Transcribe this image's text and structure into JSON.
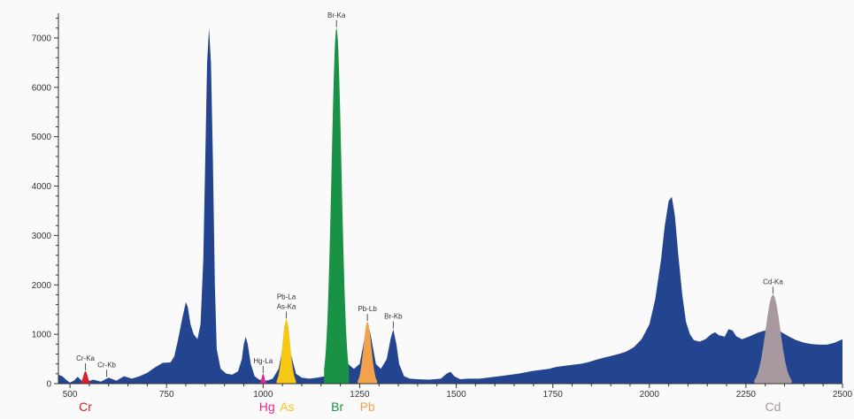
{
  "chart_data": {
    "type": "area",
    "title": "",
    "xlabel": "",
    "ylabel": "",
    "xlim": [
      470,
      2500
    ],
    "ylim": [
      0,
      7500
    ],
    "x_ticks": [
      500,
      750,
      1000,
      1250,
      1500,
      1750,
      2000,
      2250,
      2500
    ],
    "y_ticks": [
      0,
      1000,
      2000,
      3000,
      4000,
      5000,
      6000,
      7000
    ],
    "grid": false,
    "series": [
      {
        "color": "#23448f",
        "points": [
          [
            470,
            180
          ],
          [
            480,
            150
          ],
          [
            490,
            80
          ],
          [
            500,
            20
          ],
          [
            510,
            60
          ],
          [
            520,
            140
          ],
          [
            530,
            60
          ],
          [
            540,
            30
          ],
          [
            560,
            80
          ],
          [
            580,
            40
          ],
          [
            600,
            120
          ],
          [
            620,
            60
          ],
          [
            640,
            150
          ],
          [
            660,
            100
          ],
          [
            680,
            150
          ],
          [
            700,
            220
          ],
          [
            720,
            330
          ],
          [
            740,
            420
          ],
          [
            760,
            430
          ],
          [
            770,
            550
          ],
          [
            780,
            900
          ],
          [
            790,
            1300
          ],
          [
            800,
            1650
          ],
          [
            805,
            1550
          ],
          [
            812,
            1200
          ],
          [
            820,
            1000
          ],
          [
            830,
            900
          ],
          [
            838,
            1200
          ],
          [
            845,
            2500
          ],
          [
            850,
            4500
          ],
          [
            855,
            6500
          ],
          [
            860,
            7200
          ],
          [
            865,
            6500
          ],
          [
            870,
            4500
          ],
          [
            875,
            2000
          ],
          [
            880,
            700
          ],
          [
            890,
            300
          ],
          [
            905,
            200
          ],
          [
            920,
            180
          ],
          [
            935,
            250
          ],
          [
            945,
            500
          ],
          [
            950,
            800
          ],
          [
            955,
            950
          ],
          [
            960,
            800
          ],
          [
            968,
            400
          ],
          [
            978,
            150
          ],
          [
            990,
            80
          ],
          [
            1010,
            60
          ],
          [
            1025,
            100
          ],
          [
            1040,
            300
          ],
          [
            1050,
            700
          ],
          [
            1055,
            1150
          ],
          [
            1060,
            1300
          ],
          [
            1065,
            1150
          ],
          [
            1072,
            600
          ],
          [
            1085,
            200
          ],
          [
            1100,
            120
          ],
          [
            1120,
            100
          ],
          [
            1140,
            120
          ],
          [
            1160,
            150
          ],
          [
            1175,
            1500
          ],
          [
            1185,
            6000
          ],
          [
            1190,
            7200
          ],
          [
            1195,
            6000
          ],
          [
            1205,
            1500
          ],
          [
            1220,
            400
          ],
          [
            1235,
            300
          ],
          [
            1250,
            400
          ],
          [
            1262,
            900
          ],
          [
            1270,
            1250
          ],
          [
            1278,
            1000
          ],
          [
            1292,
            400
          ],
          [
            1305,
            300
          ],
          [
            1320,
            500
          ],
          [
            1330,
            900
          ],
          [
            1337,
            1100
          ],
          [
            1345,
            800
          ],
          [
            1352,
            400
          ],
          [
            1365,
            150
          ],
          [
            1380,
            100
          ],
          [
            1400,
            90
          ],
          [
            1430,
            80
          ],
          [
            1460,
            100
          ],
          [
            1475,
            200
          ],
          [
            1485,
            240
          ],
          [
            1495,
            150
          ],
          [
            1510,
            90
          ],
          [
            1530,
            100
          ],
          [
            1560,
            100
          ],
          [
            1590,
            130
          ],
          [
            1620,
            160
          ],
          [
            1660,
            200
          ],
          [
            1700,
            260
          ],
          [
            1740,
            300
          ],
          [
            1760,
            340
          ],
          [
            1780,
            360
          ],
          [
            1800,
            380
          ],
          [
            1820,
            400
          ],
          [
            1840,
            430
          ],
          [
            1860,
            480
          ],
          [
            1880,
            520
          ],
          [
            1900,
            560
          ],
          [
            1920,
            600
          ],
          [
            1940,
            650
          ],
          [
            1960,
            740
          ],
          [
            1980,
            900
          ],
          [
            2000,
            1200
          ],
          [
            2015,
            1700
          ],
          [
            2030,
            2500
          ],
          [
            2040,
            3200
          ],
          [
            2050,
            3700
          ],
          [
            2058,
            3780
          ],
          [
            2066,
            3400
          ],
          [
            2075,
            2600
          ],
          [
            2085,
            1800
          ],
          [
            2095,
            1250
          ],
          [
            2105,
            1000
          ],
          [
            2115,
            880
          ],
          [
            2130,
            850
          ],
          [
            2145,
            900
          ],
          [
            2160,
            1000
          ],
          [
            2170,
            1040
          ],
          [
            2180,
            980
          ],
          [
            2195,
            950
          ],
          [
            2205,
            1100
          ],
          [
            2215,
            1080
          ],
          [
            2225,
            960
          ],
          [
            2240,
            900
          ],
          [
            2260,
            960
          ],
          [
            2280,
            1030
          ],
          [
            2300,
            1080
          ],
          [
            2320,
            1100
          ],
          [
            2340,
            1050
          ],
          [
            2360,
            960
          ],
          [
            2380,
            880
          ],
          [
            2400,
            830
          ],
          [
            2420,
            800
          ],
          [
            2440,
            790
          ],
          [
            2460,
            790
          ],
          [
            2480,
            830
          ],
          [
            2500,
            900
          ],
          [
            2505,
            910
          ]
        ]
      }
    ],
    "highlighted_peaks": [
      {
        "name": "Cr-Ka",
        "color": "#d7202a",
        "center": 540,
        "height": 250,
        "width": 12
      },
      {
        "name": "Hg-La",
        "color": "#e6268e",
        "center": 1000,
        "height": 200,
        "width": 8
      },
      {
        "name": "As-Ka",
        "color": "#f6c814",
        "center": 1060,
        "height": 1300,
        "width": 22
      },
      {
        "name": "Br-Ka",
        "color": "#1a9246",
        "center": 1190,
        "height": 7200,
        "width": 28
      },
      {
        "name": "Pb-Lb",
        "color": "#f2a24c",
        "center": 1270,
        "height": 1250,
        "width": 22
      },
      {
        "name": "Cd-Ka",
        "color": "#a8989f",
        "center": 2320,
        "height": 1800,
        "width": 42
      }
    ],
    "peak_annotations": [
      {
        "lines": [
          "Cr-Ka"
        ],
        "x": 540,
        "y": 250
      },
      {
        "lines": [
          "Cr-Kb"
        ],
        "x": 595,
        "y": 120
      },
      {
        "lines": [
          "Hg-La"
        ],
        "x": 1000,
        "y": 200
      },
      {
        "lines": [
          "Pb-La",
          "As-Ka"
        ],
        "x": 1060,
        "y": 1300
      },
      {
        "lines": [
          "Br-Ka"
        ],
        "x": 1190,
        "y": 7200
      },
      {
        "lines": [
          "Pb-Lb"
        ],
        "x": 1270,
        "y": 1250
      },
      {
        "lines": [
          "Br-Kb"
        ],
        "x": 1337,
        "y": 1100
      },
      {
        "lines": [
          "Cd-Ka"
        ],
        "x": 2320,
        "y": 1800
      }
    ],
    "element_labels": [
      {
        "text": "Cr",
        "color": "#d7202a",
        "x": 540
      },
      {
        "text": "Hg",
        "color": "#e6268e",
        "x": 1010
      },
      {
        "text": "As",
        "color": "#f6c814",
        "x": 1062
      },
      {
        "text": "Br",
        "color": "#1a9246",
        "x": 1192
      },
      {
        "text": "Pb",
        "color": "#f2a24c",
        "x": 1270
      },
      {
        "text": "Cd",
        "color": "#a8989f",
        "x": 2320
      }
    ]
  }
}
